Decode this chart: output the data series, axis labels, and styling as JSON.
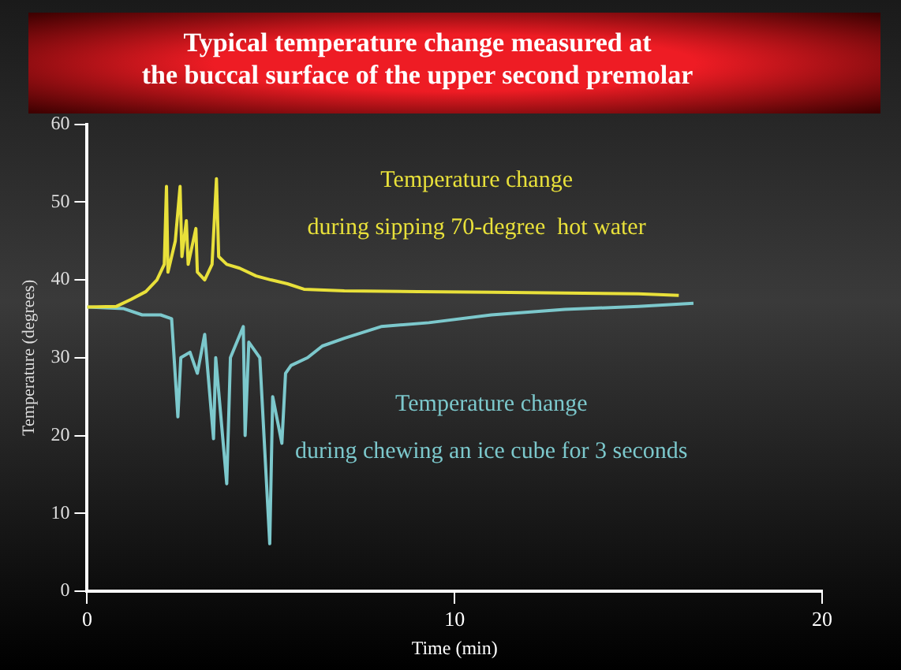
{
  "chart_data": {
    "type": "line",
    "title": "Typical temperature change measured at\nthe buccal surface of the upper second premolar",
    "xlabel": "Time (min)",
    "ylabel": "Temperature (degrees)",
    "xlim": [
      0,
      20
    ],
    "xticks": [
      0,
      10,
      20
    ],
    "ylim": [
      0,
      60
    ],
    "yticks": [
      0,
      10,
      20,
      30,
      40,
      50,
      60
    ],
    "grid": false,
    "legend": false,
    "marker": "none",
    "line_style": "solid",
    "series": [
      {
        "name": "Temperature change\nduring sipping 70-degree  hot water",
        "color": "#e8e03a",
        "x": [
          0,
          0.8,
          1.2,
          1.6,
          1.9,
          2.1,
          2.16,
          2.2,
          2.4,
          2.53,
          2.58,
          2.7,
          2.75,
          2.96,
          3.0,
          3.2,
          3.4,
          3.52,
          3.58,
          3.8,
          4.15,
          4.6,
          5.0,
          5.45,
          5.9,
          7,
          9,
          11,
          13,
          15,
          16.1
        ],
        "values": [
          36.5,
          36.6,
          37.5,
          38.5,
          40,
          42,
          52,
          41,
          45,
          52,
          43,
          47.6,
          42,
          46.6,
          41,
          40,
          42,
          53,
          43,
          42,
          41.5,
          40.5,
          40,
          39.5,
          38.8,
          38.6,
          38.5,
          38.4,
          38.3,
          38.2,
          38
        ]
      },
      {
        "name": "Temperature change\nduring chewing an ice cube for 3 seconds",
        "color": "#7cc8cc",
        "x": [
          0,
          1,
          1.5,
          2,
          2.3,
          2.47,
          2.55,
          2.8,
          3.0,
          3.2,
          3.44,
          3.5,
          3.8,
          3.9,
          4.25,
          4.3,
          4.4,
          4.7,
          4.97,
          5.05,
          5.3,
          5.4,
          5.55,
          6,
          6.4,
          7,
          8,
          9.3,
          11,
          13,
          15,
          16.5
        ],
        "values": [
          36.5,
          36.3,
          35.5,
          35.5,
          35,
          22.4,
          30,
          30.7,
          28,
          33,
          19.6,
          30,
          13.8,
          30,
          34,
          20,
          32,
          30,
          6.1,
          25,
          19,
          28,
          29,
          30,
          31.5,
          32.5,
          34,
          34.5,
          35.5,
          36.2,
          36.6,
          37
        ]
      }
    ]
  }
}
